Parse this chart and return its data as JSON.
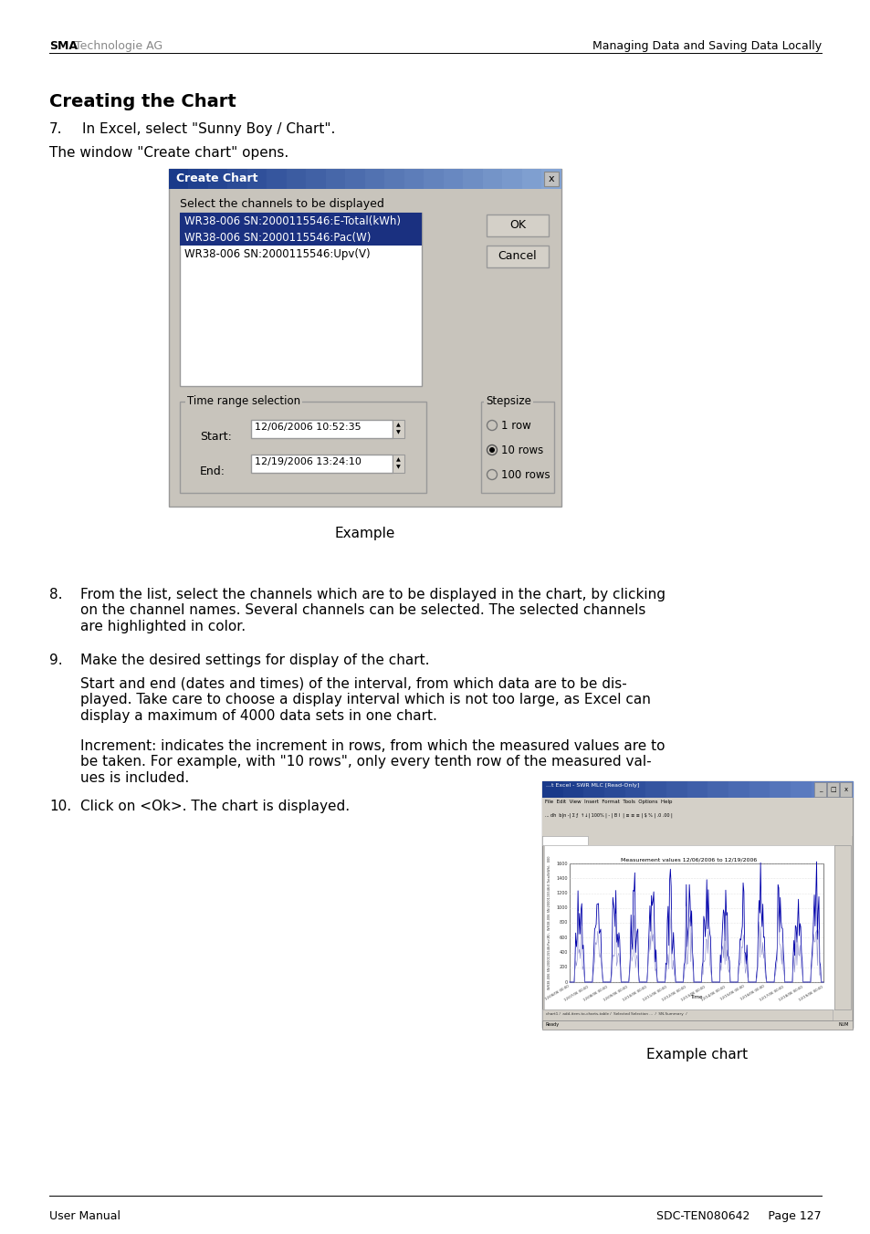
{
  "page_bg": "#ffffff",
  "header_left_bold": "SMA",
  "header_left_normal": " Technologie AG",
  "header_right": "Managing Data and Saving Data Locally",
  "section_title": "Creating the Chart",
  "step7_num": "7.",
  "step7_text": "In Excel, select \"Sunny Boy / Chart\".",
  "window_intro": "The window \"Create chart\" opens.",
  "dialog_title": "Create Chart",
  "dialog_label": "Select the channels to be displayed",
  "list_items": [
    "WR38-006 SN:2000115546:E-Total(kWh)",
    "WR38-006 SN:2000115546:Pac(W)",
    "WR38-006 SN:2000115546:Upv(V)"
  ],
  "selected_indices": [
    0,
    1
  ],
  "btn_ok": "OK",
  "btn_cancel": "Cancel",
  "time_range_label": "Time range selection",
  "start_label": "Start:",
  "start_value": "12/06/2006 10:52:35",
  "end_label": "End:",
  "end_value": "12/19/2006 13:24:10",
  "stepsize_label": "Stepsize",
  "stepsize_options": [
    "1 row",
    "10 rows",
    "100 rows"
  ],
  "stepsize_selected": 1,
  "caption_example": "Example",
  "step8_num": "8.",
  "step8_text": "From the list, select the channels which are to be displayed in the chart, by clicking\non the channel names. Several channels can be selected. The selected channels\nare highlighted in color.",
  "step9_num": "9.",
  "step9_text": "Make the desired settings for display of the chart.",
  "step9_para1": "Start and end (dates and times) of the interval, from which data are to be dis-\nplayed. Take care to choose a display interval which is not too large, as Excel can\ndisplay a maximum of 4000 data sets in one chart.",
  "step9_para2": "Increment: indicates the increment in rows, from which the measured values are to\nbe taken. For example, with \"10 rows\", only every tenth row of the measured val-\nues is included.",
  "step10_num": "10.",
  "step10_text": "Click on <Ok>. The chart is displayed.",
  "caption_example_chart": "Example chart",
  "footer_left": "User Manual",
  "footer_right": "SDC-TEN080642     Page 127",
  "dialog_bg": "#c8c4bc",
  "dialog_title_bg_left": "#1a3a8a",
  "dialog_title_bg_right": "#8aaad8",
  "list_bg": "#ffffff",
  "selected_bg": "#1a3080",
  "selected_fg": "#ffffff",
  "normal_fg": "#000000",
  "btn_bg": "#d4d0c8",
  "title_bar_text_color": "#ffffff",
  "excel_title_bg": "#1a3a8a",
  "excel_menu_bg": "#d4d0c8",
  "excel_toolbar_bg": "#d4d0c8",
  "chart_plot_bg": "#ffffff",
  "chart_line_color": "#0000aa",
  "chart_line_color2": "#8888cc"
}
